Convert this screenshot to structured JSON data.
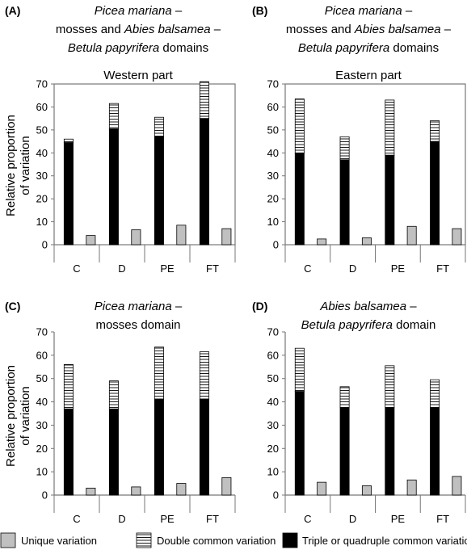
{
  "figure": {
    "ylabel_lines": [
      "Relative proportion",
      "of variation"
    ]
  },
  "legend": {
    "items": [
      {
        "key": "unique",
        "label": "Unique variation",
        "color": "#c0c0c0"
      },
      {
        "key": "double",
        "label": "Double common variation",
        "color": "#ffffff"
      },
      {
        "key": "triple",
        "label": "Triple or quadruple common variation",
        "color": "#000000"
      }
    ]
  },
  "chart_data": [
    {
      "type": "bar",
      "panel_label": "(A)",
      "title_lines": [
        [
          {
            "t": "Picea mariana",
            "i": true
          },
          {
            "t": " –",
            "i": false
          }
        ],
        [
          {
            "t": "mosses and ",
            "i": false
          },
          {
            "t": "Abies balsamea",
            "i": true
          },
          {
            "t": " –",
            "i": false
          }
        ],
        [
          {
            "t": "Betula papyrifera",
            "i": true
          },
          {
            "t": " domains",
            "i": false
          }
        ]
      ],
      "inset_title": "Western part",
      "categories": [
        "C",
        "D",
        "PE",
        "FT"
      ],
      "ylim": [
        0,
        70
      ],
      "yticks": [
        0,
        10,
        20,
        30,
        40,
        50,
        60,
        70
      ],
      "frame": "box",
      "series": [
        {
          "name": "Triple or quadruple common variation",
          "values": [
            44.5,
            50.5,
            47,
            55
          ]
        },
        {
          "name": "Double common variation",
          "values": [
            1.5,
            11,
            8.5,
            16
          ]
        },
        {
          "name": "Unique variation",
          "values": [
            4,
            6.5,
            8.5,
            7
          ]
        }
      ]
    },
    {
      "type": "bar",
      "panel_label": "(B)",
      "title_lines": [
        [
          {
            "t": "Picea mariana",
            "i": true
          },
          {
            "t": " –",
            "i": false
          }
        ],
        [
          {
            "t": "mosses and ",
            "i": false
          },
          {
            "t": "Abies balsamea",
            "i": true
          },
          {
            "t": " –",
            "i": false
          }
        ],
        [
          {
            "t": "Betula papyrifera",
            "i": true
          },
          {
            "t": " domains",
            "i": false
          }
        ]
      ],
      "inset_title": "Eastern part",
      "categories": [
        "C",
        "D",
        "PE",
        "FT"
      ],
      "ylim": [
        0,
        70
      ],
      "yticks": [
        0,
        10,
        20,
        30,
        40,
        50,
        60,
        70
      ],
      "frame": "box",
      "series": [
        {
          "name": "Triple or quadruple common variation",
          "values": [
            40,
            37,
            39,
            45
          ]
        },
        {
          "name": "Double common variation",
          "values": [
            23.5,
            10,
            24,
            9
          ]
        },
        {
          "name": "Unique variation",
          "values": [
            2.5,
            3,
            8,
            7
          ]
        }
      ]
    },
    {
      "type": "bar",
      "panel_label": "(C)",
      "title_lines": [
        [
          {
            "t": "Picea mariana",
            "i": true
          },
          {
            "t": " –",
            "i": false
          }
        ],
        [
          {
            "t": "mosses domain",
            "i": false
          }
        ]
      ],
      "inset_title": "",
      "categories": [
        "C",
        "D",
        "PE",
        "FT"
      ],
      "ylim": [
        0,
        70
      ],
      "yticks": [
        0,
        10,
        20,
        30,
        40,
        50,
        60,
        70
      ],
      "frame": "axes",
      "series": [
        {
          "name": "Triple or quadruple common variation",
          "values": [
            37,
            37,
            41,
            41
          ]
        },
        {
          "name": "Double common variation",
          "values": [
            19,
            12,
            22.5,
            20.5
          ]
        },
        {
          "name": "Unique variation",
          "values": [
            3,
            3.5,
            5,
            7.5
          ]
        }
      ]
    },
    {
      "type": "bar",
      "panel_label": "(D)",
      "title_lines": [
        [
          {
            "t": "Abies balsamea",
            "i": true
          },
          {
            "t": " –",
            "i": false
          }
        ],
        [
          {
            "t": "Betula papyrifera",
            "i": true
          },
          {
            "t": " domain",
            "i": false
          }
        ]
      ],
      "inset_title": "",
      "categories": [
        "C",
        "D",
        "PE",
        "FT"
      ],
      "ylim": [
        0,
        70
      ],
      "yticks": [
        0,
        10,
        20,
        30,
        40,
        50,
        60,
        70
      ],
      "frame": "axes",
      "series": [
        {
          "name": "Triple or quadruple common variation",
          "values": [
            44.5,
            37.5,
            37.5,
            37.5
          ]
        },
        {
          "name": "Double common variation",
          "values": [
            18.5,
            9,
            18,
            12
          ]
        },
        {
          "name": "Unique variation",
          "values": [
            5.5,
            4,
            6.5,
            8
          ]
        }
      ]
    }
  ]
}
